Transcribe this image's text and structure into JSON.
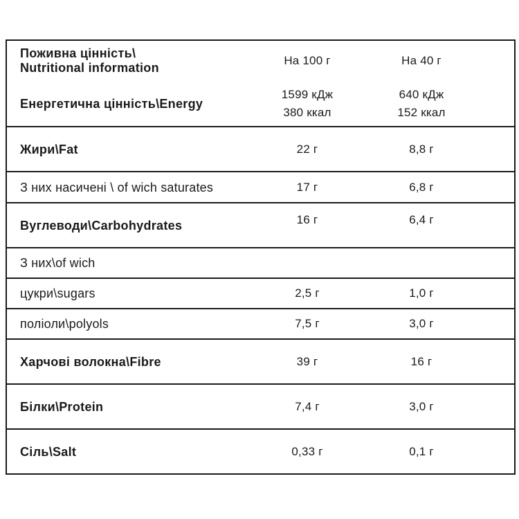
{
  "table": {
    "header": {
      "label_line1": "Поживна цінність\\",
      "label_line2": "Nutritional information",
      "col_per_100g": "На 100 г",
      "col_per_40g": "На 40 г"
    },
    "rows": [
      {
        "label": "Енергетична цінність\\Energy",
        "bold": true,
        "size": "lg",
        "v100": [
          "1599 кДж",
          "380 ккал"
        ],
        "v40": [
          "640 кДж",
          "152 ккал"
        ]
      },
      {
        "label": "Жири\\Fat",
        "bold": true,
        "size": "lg",
        "v100": [
          "22 г"
        ],
        "v40": [
          "8,8 г"
        ]
      },
      {
        "label": "З них насичені \\ of wich saturates",
        "bold": false,
        "size": "sm",
        "v100": [
          "17 г"
        ],
        "v40": [
          "6,8 г"
        ]
      },
      {
        "label": "Вуглеводи\\Carbohydrates",
        "bold": true,
        "size": "lg",
        "valign": "top",
        "v100": [
          "16 г"
        ],
        "v40": [
          "6,4 г"
        ]
      },
      {
        "label": "З них\\of wich",
        "bold": false,
        "size": "xs",
        "v100": [],
        "v40": []
      },
      {
        "label": "цукри\\sugars",
        "bold": false,
        "size": "xs",
        "v100": [
          "2,5 г"
        ],
        "v40": [
          "1,0 г"
        ]
      },
      {
        "label": "поліоли\\polyols",
        "bold": false,
        "size": "xs",
        "v100": [
          "7,5 г"
        ],
        "v40": [
          "3,0 г"
        ]
      },
      {
        "label": "Харчові волокна\\Fibre",
        "bold": true,
        "size": "lg",
        "v100": [
          "39 г"
        ],
        "v40": [
          "16 г"
        ]
      },
      {
        "label": "Білки\\Protein",
        "bold": true,
        "size": "lg",
        "v100": [
          "7,4 г"
        ],
        "v40": [
          "3,0 г"
        ]
      },
      {
        "label": "Сіль\\Salt",
        "bold": true,
        "size": "lg",
        "v100": [
          "0,33 г"
        ],
        "v40": [
          "0,1 г"
        ]
      }
    ]
  }
}
